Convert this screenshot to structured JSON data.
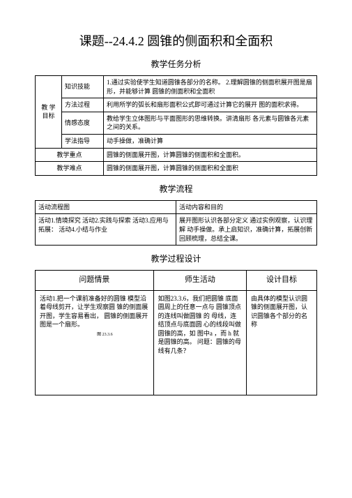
{
  "title": "课题--24.4.2   圆锥的侧面积和全面积",
  "section1_title": "教学任务分析",
  "section2_title": "教学流程",
  "section3_title": "教学过程设计",
  "table1": {
    "r1c1": "教 学 目标",
    "r1c2": "知识技能",
    "r1c3": "1.通过实验使学生知道圆锥各部分的名称。\n2.理解圆锥的侧面积展开图是扇形，并能够计算  圆锥的侧面积和全面积",
    "r2c2": "方法过程",
    "r2c3": "利用所学的弧长和扇形面积公式即可通过计算它的展开  图的面积求得。",
    "r3c2": "情感态度",
    "r3c3": "教给学生立体图形与平面图形的思维转换。讲清扇形  各元素与圆锥各元素之间的关系。",
    "r4c2": "学法指导",
    "r4c3": "动手操做，准确计算",
    "r5c1": "教学重点",
    "r5c3": "圆锥的侧面展开图，计算圆锥的侧面积和全面积。",
    "r6c1": "教学难点",
    "r6c3": "圆锥的侧面展开图，计算圆锥的侧面积和全面积"
  },
  "table2": {
    "h1": "活动流程图",
    "h2": "活动内容和目的",
    "r1c1": "活动1.情境探究  活动2.实践与探索  活动3.应用与拓展：  活动4.小结与作业",
    "r1c2": "展开图形认识各部分定义  通过实例观察，认识理解  动手操做。承上启知识，准确计算，拓展创新  回顾梳理，总结全课。"
  },
  "table3": {
    "h1": "问题情景",
    "h2": "师生活动",
    "h3": "设计目标",
    "r1c1": "活动1.把一个课前准备好的圆锥  模型沿着母线剪开，让学生观察圆  锥的侧面展开图，学生容易看出，  圆锥的侧面展开图是一个扇形。",
    "r1c2": "如图23.3.6，我们把圆锥  底面圆周上的任意一点与  圆锥顶点的连线叫做圆锥  的 母线，连结顶点与底面圆  心的线段叫做圆锥的高，如  图中a ，而 h 就是圆锥的高。 问题：圆锥的母线有几条？",
    "r1c3": "由具体的模型认识圆锥的侧面展开图，认识圆锥各个部分的名称",
    "caption": "图 23.3.6"
  }
}
